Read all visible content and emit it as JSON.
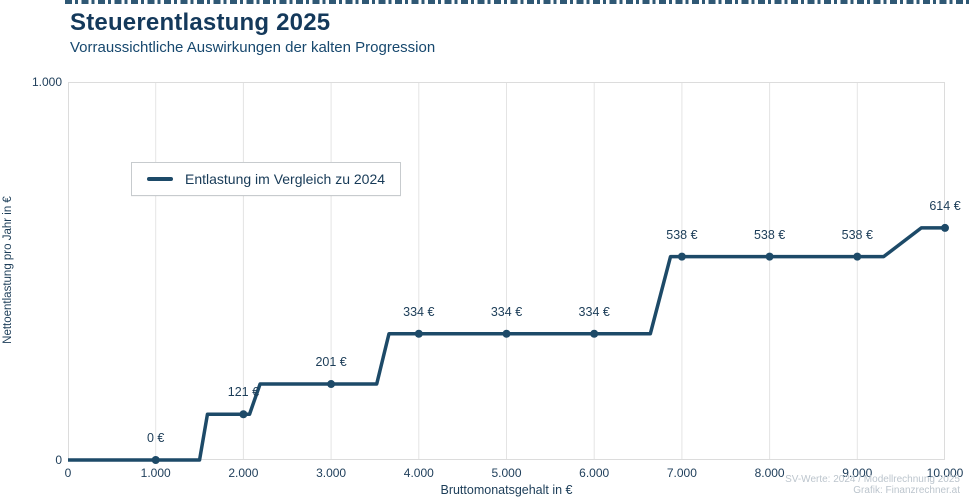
{
  "header": {
    "title": "Steuerentlastung 2025",
    "subtitle": "Vorraussichtliche Auswirkungen der kalten Progression"
  },
  "legend": {
    "label": "Entlastung im Vergleich zu 2024"
  },
  "footer": {
    "line1": "SV-Werte: 2024 / Modellrechnung 2025",
    "line2": "Grafik: Finanzrechner.at"
  },
  "colors": {
    "accent_line": "#1d4a68",
    "title_text": "#14395b",
    "tick_text": "#21405c",
    "gridline": "#e4e4e4",
    "plot_border": "#dcdcdc",
    "muted_footer": "#bcc5cd"
  },
  "chart_data": {
    "type": "line",
    "subtype": "step",
    "title": "Steuerentlastung 2025",
    "subtitle": "Vorraussichtliche Auswirkungen der kalten Progression",
    "xlabel": "Bruttomonatsgehalt in €",
    "ylabel": "Nettoentlastung pro Jahr in €",
    "xlim": [
      0,
      10000
    ],
    "ylim": [
      0,
      1000
    ],
    "x_ticks": [
      0,
      1000,
      2000,
      3000,
      4000,
      5000,
      6000,
      7000,
      8000,
      9000,
      10000
    ],
    "x_tick_labels": [
      "0",
      "1.000",
      "2.000",
      "3.000",
      "4.000",
      "5.000",
      "6.000",
      "7.000",
      "8.000",
      "9.000",
      "10.000"
    ],
    "y_ticks": [
      0,
      1000
    ],
    "y_tick_labels": [
      "0",
      "1.000"
    ],
    "grid": "vertical-only",
    "legend_position": "upper-left-inside",
    "series": [
      {
        "name": "Entlastung im Vergleich zu 2024",
        "path": [
          [
            0,
            0
          ],
          [
            1500,
            0
          ],
          [
            1590,
            121
          ],
          [
            2070,
            121
          ],
          [
            2190,
            201
          ],
          [
            3520,
            201
          ],
          [
            3660,
            334
          ],
          [
            6640,
            334
          ],
          [
            6870,
            538
          ],
          [
            9300,
            538
          ],
          [
            9730,
            614
          ],
          [
            10000,
            614
          ]
        ],
        "markers": [
          {
            "x": 1000,
            "y": 0,
            "label": "0 €"
          },
          {
            "x": 2000,
            "y": 121,
            "label": "121 €"
          },
          {
            "x": 3000,
            "y": 201,
            "label": "201 €"
          },
          {
            "x": 4000,
            "y": 334,
            "label": "334 €"
          },
          {
            "x": 5000,
            "y": 334,
            "label": "334 €"
          },
          {
            "x": 6000,
            "y": 334,
            "label": "334 €"
          },
          {
            "x": 7000,
            "y": 538,
            "label": "538 €"
          },
          {
            "x": 8000,
            "y": 538,
            "label": "538 €"
          },
          {
            "x": 9000,
            "y": 538,
            "label": "538 €"
          },
          {
            "x": 10000,
            "y": 614,
            "label": "614 €"
          }
        ]
      }
    ]
  }
}
